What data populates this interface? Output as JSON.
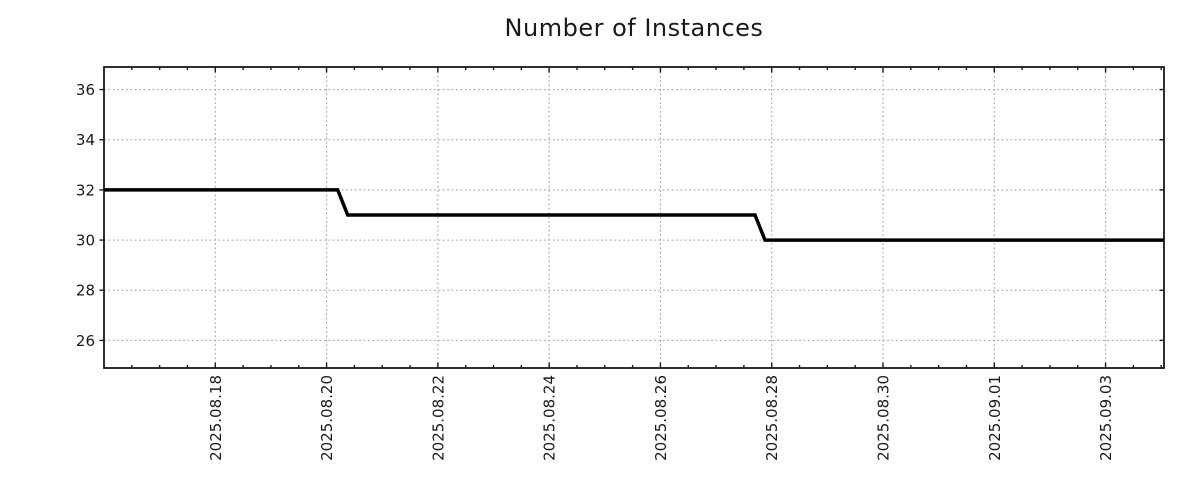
{
  "chart_data": {
    "type": "line",
    "style": "step-line",
    "title": "Number of Instances",
    "background_color": "#ffffff",
    "line_color": "#000000",
    "line_width": 3.5,
    "grid_on": true,
    "grid_color": "#a0a0a0",
    "axis_color": "#1a1a1a",
    "text_color": "#1a1a1a",
    "legend": "none",
    "x_axis": {
      "tick_labels": [
        "2025.08.18",
        "2025.08.20",
        "2025.08.22",
        "2025.08.24",
        "2025.08.26",
        "2025.08.28",
        "2025.08.30",
        "2025.09.01",
        "2025.09.03"
      ],
      "tick_days": [
        2,
        4,
        6,
        8,
        10,
        12,
        14,
        16,
        18
      ],
      "minor_tick_step_days": 0.5,
      "domain_days": [
        0,
        19.05
      ],
      "label_rotation_deg": -90
    },
    "y_axis": {
      "ticks": [
        26,
        28,
        30,
        32,
        34,
        36
      ],
      "domain": [
        24.9,
        36.9
      ]
    },
    "series": [
      {
        "points_day_value": [
          [
            0,
            32
          ],
          [
            4.2,
            32
          ],
          [
            4.38,
            31
          ],
          [
            11.7,
            31
          ],
          [
            11.88,
            30
          ],
          [
            19.05,
            30
          ]
        ]
      }
    ],
    "segments": [
      {
        "value": 32,
        "from": "chart start (~2025.08.16)",
        "to": "~2025.08.20"
      },
      {
        "value": 31,
        "from": "~2025.08.20",
        "to": "~2025.08.28"
      },
      {
        "value": 30,
        "from": "~2025.08.28",
        "to": "chart end (~2025.09.04)"
      }
    ]
  }
}
